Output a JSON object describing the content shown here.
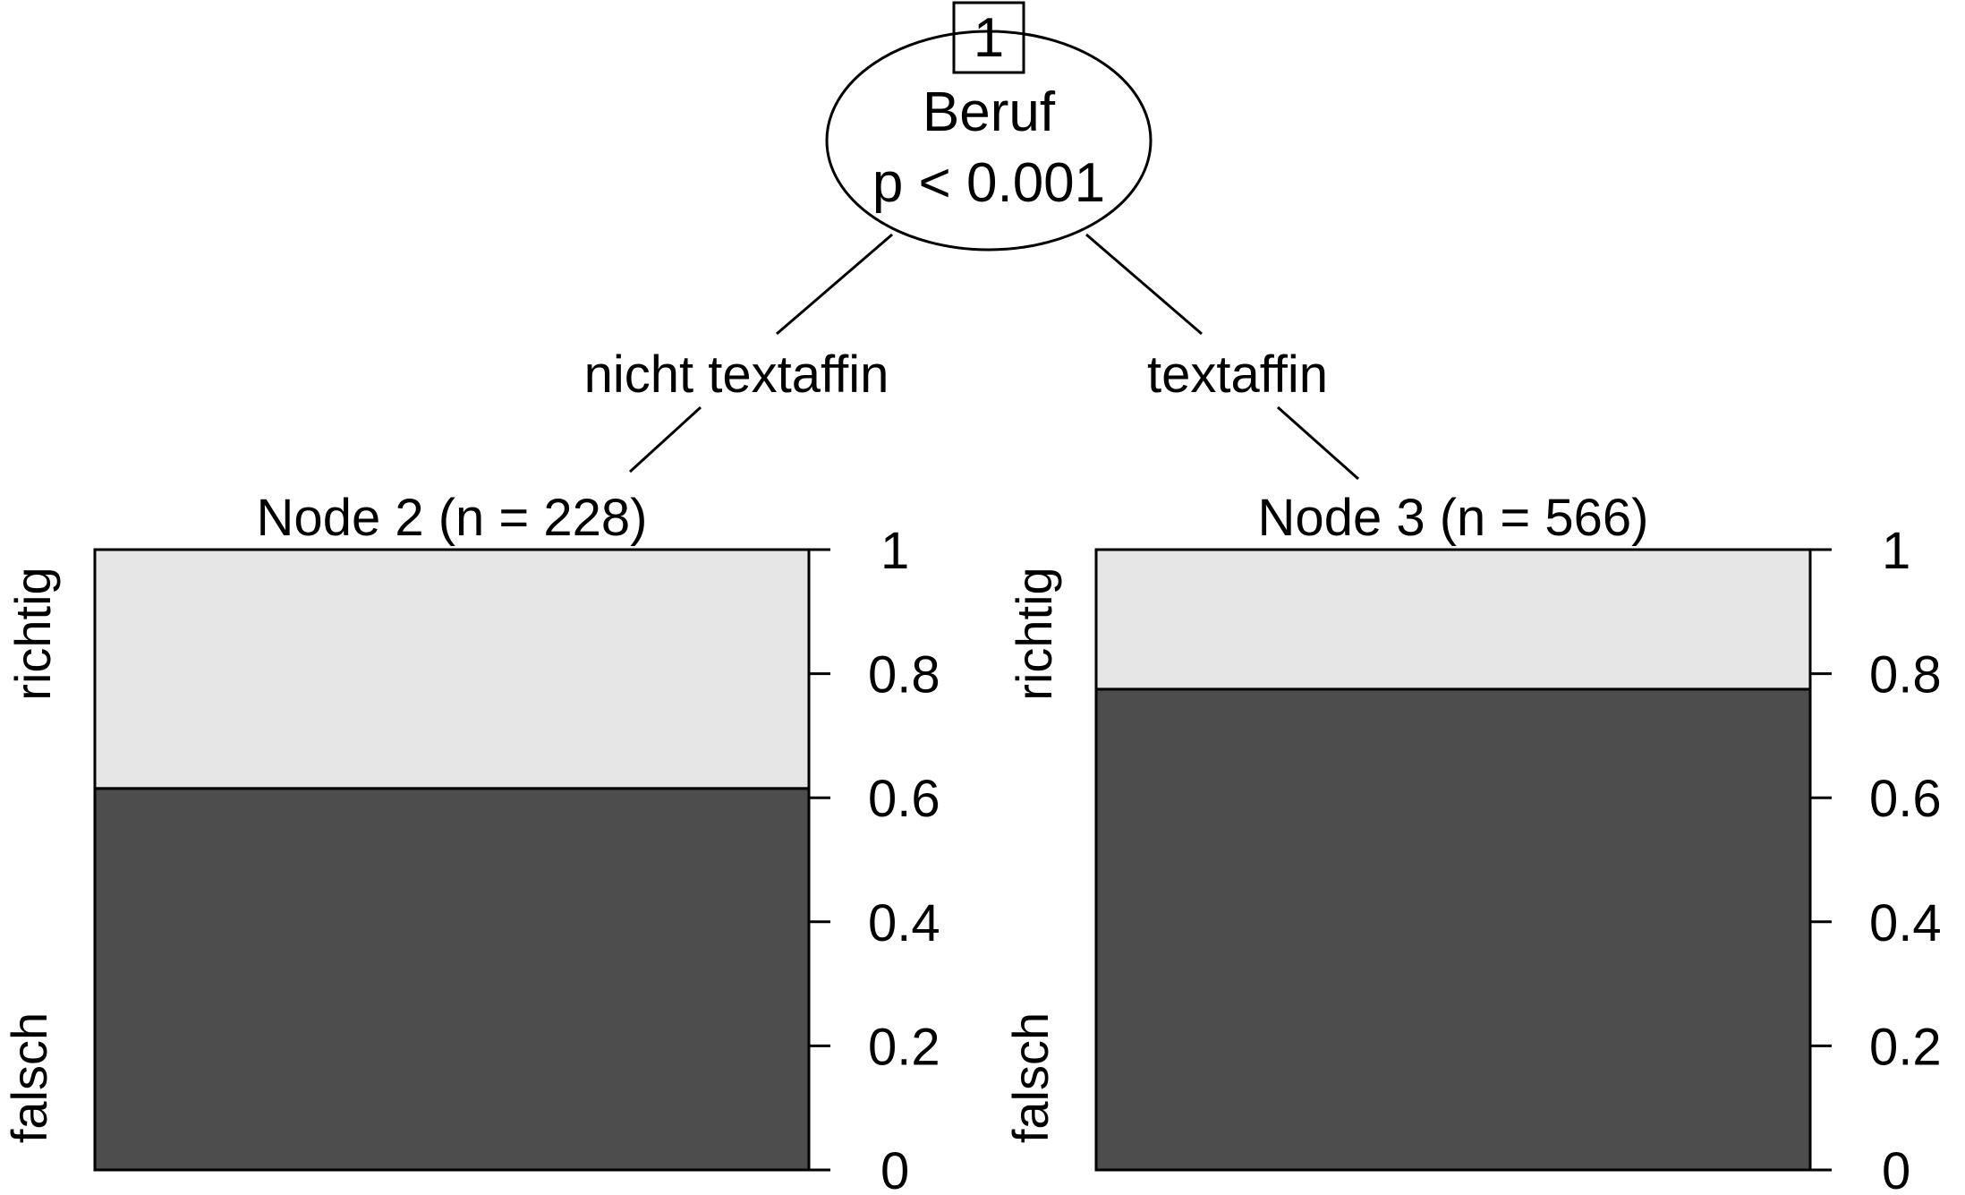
{
  "colors": {
    "falsch": "#4d4d4d",
    "richtig": "#e6e6e6",
    "line": "#000000"
  },
  "root": {
    "id": "1",
    "variable": "Beruf",
    "pvalue": "p < 0.001"
  },
  "edges": [
    {
      "label": "nicht textaffin"
    },
    {
      "label": "textaffin"
    }
  ],
  "chart_data": [
    {
      "type": "bar",
      "title": "Node 2 (n = 228)",
      "categories": [
        "falsch",
        "richtig"
      ],
      "values": [
        0.615,
        0.385
      ],
      "ylim": [
        0,
        1
      ],
      "yticks": [
        "0",
        "0.2",
        "0.4",
        "0.6",
        "0.8",
        "1"
      ],
      "stacked": true
    },
    {
      "type": "bar",
      "title": "Node 3 (n = 566)",
      "categories": [
        "falsch",
        "richtig"
      ],
      "values": [
        0.775,
        0.225
      ],
      "ylim": [
        0,
        1
      ],
      "yticks": [
        "0",
        "0.2",
        "0.4",
        "0.6",
        "0.8",
        "1"
      ],
      "stacked": true
    }
  ]
}
